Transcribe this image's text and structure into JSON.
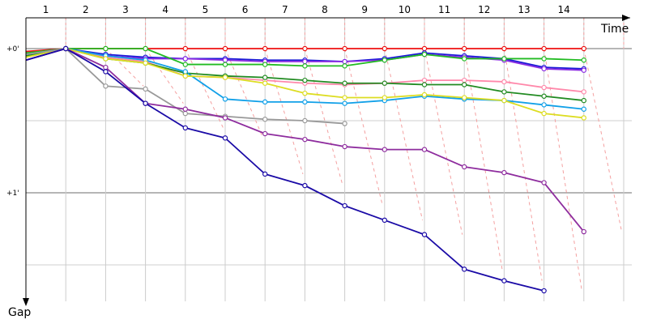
{
  "chart_data": {
    "type": "line",
    "xlabel": "Time",
    "ylabel": "Gap",
    "x_ticks": [
      "1",
      "2",
      "3",
      "4",
      "5",
      "6",
      "7",
      "8",
      "9",
      "10",
      "11",
      "12",
      "13",
      "14"
    ],
    "y_ticks": [
      "+0'",
      "+1'"
    ],
    "y_range_minutes": [
      0,
      1.7
    ],
    "grid": true,
    "series": [
      {
        "color": "#ee1111",
        "values": [
          0.02,
          0.0,
          0.0,
          0.0,
          0.0,
          0.0,
          0.0,
          0.0,
          0.0,
          0.0,
          0.0,
          0.0,
          0.0,
          0.0,
          0.0
        ]
      },
      {
        "color": "#1a1ad6",
        "values": [
          0.04,
          0.0,
          0.04,
          0.06,
          0.07,
          0.07,
          0.08,
          0.08,
          0.09,
          0.07,
          0.03,
          0.05,
          0.07,
          0.13,
          0.14
        ]
      },
      {
        "color": "#8a2be2",
        "values": [
          0.08,
          0.0,
          0.05,
          0.07,
          0.07,
          0.08,
          0.09,
          0.09,
          0.09,
          0.08,
          0.04,
          0.06,
          0.08,
          0.14,
          0.15
        ]
      },
      {
        "color": "#22bb22",
        "values": [
          0.03,
          0.0,
          0.0,
          0.0,
          0.11,
          0.11,
          0.11,
          0.12,
          0.12,
          0.08,
          0.04,
          0.07,
          0.07,
          0.07,
          0.08
        ]
      },
      {
        "color": "#ff88aa",
        "values": [
          0.05,
          0.0,
          0.06,
          0.09,
          0.19,
          0.2,
          0.22,
          0.24,
          0.25,
          0.24,
          0.22,
          0.22,
          0.23,
          0.27,
          0.3
        ]
      },
      {
        "color": "#228b22",
        "values": [
          0.05,
          0.0,
          0.07,
          0.1,
          0.17,
          0.19,
          0.2,
          0.22,
          0.24,
          0.24,
          0.25,
          0.25,
          0.3,
          0.33,
          0.36
        ]
      },
      {
        "color": "#11a0e8",
        "values": [
          0.04,
          0.0,
          0.05,
          0.08,
          0.16,
          0.35,
          0.37,
          0.37,
          0.38,
          0.36,
          0.33,
          0.35,
          0.36,
          0.39,
          0.42
        ]
      },
      {
        "color": "#dddd22",
        "values": [
          0.06,
          0.0,
          0.07,
          0.1,
          0.19,
          0.2,
          0.24,
          0.31,
          0.34,
          0.34,
          0.32,
          0.34,
          0.36,
          0.45,
          0.48
        ]
      },
      {
        "color": "#999999",
        "values": [
          0.04,
          0.0,
          0.26,
          0.28,
          0.45,
          0.47,
          0.49,
          0.5,
          0.52
        ]
      },
      {
        "color": "#8e2c9e",
        "values": [
          0.08,
          0.0,
          0.13,
          0.38,
          0.42,
          0.48,
          0.59,
          0.63,
          0.68,
          0.7,
          0.7,
          0.82,
          0.86,
          0.93,
          1.27
        ]
      },
      {
        "color": "#1a0aa6",
        "values": [
          0.08,
          0.0,
          0.16,
          0.38,
          0.55,
          0.62,
          0.87,
          0.95,
          1.09,
          1.19,
          1.29,
          1.53,
          1.61,
          1.68
        ]
      }
    ]
  }
}
